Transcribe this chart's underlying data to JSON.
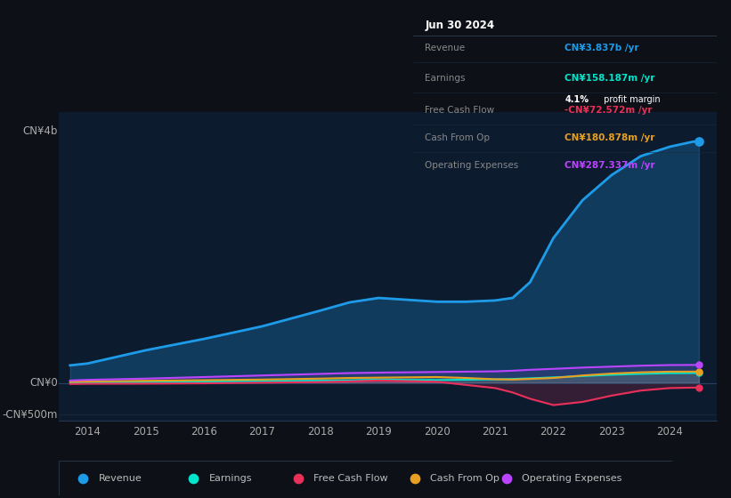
{
  "bg_color": "#0d1117",
  "plot_bg_color": "#0d1b2e",
  "text_color_light": "#cccccc",
  "text_color_dim": "#888888",
  "years": [
    2013.7,
    2014.0,
    2015.0,
    2016.0,
    2017.0,
    2018.0,
    2018.5,
    2019.0,
    2019.5,
    2020.0,
    2020.5,
    2021.0,
    2021.3,
    2021.6,
    2022.0,
    2022.5,
    2023.0,
    2023.5,
    2024.0,
    2024.4,
    2024.5
  ],
  "revenue": [
    280,
    310,
    520,
    700,
    900,
    1150,
    1280,
    1350,
    1320,
    1290,
    1290,
    1310,
    1350,
    1600,
    2300,
    2900,
    3300,
    3600,
    3750,
    3830,
    3837
  ],
  "earnings": [
    5,
    8,
    15,
    22,
    30,
    38,
    44,
    55,
    50,
    48,
    52,
    58,
    65,
    75,
    90,
    110,
    130,
    145,
    155,
    158,
    158
  ],
  "free_cash_flow": [
    -15,
    -12,
    -10,
    -5,
    5,
    15,
    25,
    40,
    30,
    20,
    -30,
    -80,
    -150,
    -250,
    -350,
    -300,
    -200,
    -120,
    -80,
    -73,
    -73
  ],
  "cash_from_op": [
    20,
    25,
    35,
    45,
    55,
    70,
    80,
    85,
    90,
    95,
    80,
    60,
    55,
    65,
    80,
    120,
    150,
    170,
    180,
    181,
    181
  ],
  "operating_expenses": [
    40,
    50,
    70,
    95,
    120,
    145,
    158,
    165,
    170,
    175,
    180,
    185,
    195,
    210,
    225,
    245,
    260,
    275,
    285,
    287,
    287
  ],
  "revenue_color": "#1e9be8",
  "earnings_color": "#00e5cc",
  "fcf_color": "#e8305a",
  "cashop_color": "#e8a020",
  "opex_color": "#bb44ff",
  "revenue_fill_alpha": 0.25,
  "earnings_fill_alpha": 0.1,
  "fcf_fill_alpha": 0.18,
  "cashop_fill_alpha": 0.15,
  "opex_fill_alpha": 0.12,
  "ylim_min": -600,
  "ylim_max": 4300,
  "xlim_min": 2013.5,
  "xlim_max": 2024.8,
  "ylabel_top": "CN¥4b",
  "ylabel_top_y": 4000,
  "ylabel_zero": "CN¥0",
  "ylabel_zero_y": 0,
  "ylabel_neg": "-CN¥500m",
  "ylabel_neg_y": -500,
  "xticks": [
    2014,
    2015,
    2016,
    2017,
    2018,
    2019,
    2020,
    2021,
    2022,
    2023,
    2024
  ],
  "zero_line_y": 0,
  "info_title": "Jun 30 2024",
  "info_rows": [
    {
      "label": "Revenue",
      "val": "CN¥3.837b /yr",
      "col": "#1e9be8",
      "margin": null
    },
    {
      "label": "Earnings",
      "val": "CN¥158.187m /yr",
      "col": "#00e5cc",
      "margin": "4.1% profit margin"
    },
    {
      "label": "Free Cash Flow",
      "val": "-CN¥72.572m /yr",
      "col": "#e8305a",
      "margin": null
    },
    {
      "label": "Cash From Op",
      "val": "CN¥180.878m /yr",
      "col": "#e8a020",
      "margin": null
    },
    {
      "label": "Operating Expenses",
      "val": "CN¥287.337m /yr",
      "col": "#bb44ff",
      "margin": null
    }
  ],
  "legend_items": [
    "Revenue",
    "Earnings",
    "Free Cash Flow",
    "Cash From Op",
    "Operating Expenses"
  ],
  "legend_colors": [
    "#1e9be8",
    "#00e5cc",
    "#e8305a",
    "#e8a020",
    "#bb44ff"
  ]
}
